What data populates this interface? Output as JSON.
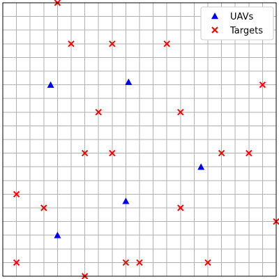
{
  "chart_data": {
    "type": "scatter",
    "title": "",
    "xlabel": "",
    "ylabel": "",
    "xlim": [
      0,
      20
    ],
    "ylim": [
      0,
      20
    ],
    "grid": true,
    "grid_step": 1,
    "ticks_visible": false,
    "legend_position": "top-right",
    "series": [
      {
        "name": "UAVs",
        "marker": "triangle",
        "color": "#0000ff",
        "points": [
          [
            3.5,
            14
          ],
          [
            9.2,
            14.2
          ],
          [
            14.5,
            8
          ],
          [
            9,
            5.5
          ],
          [
            4,
            3
          ]
        ]
      },
      {
        "name": "Targets",
        "marker": "x",
        "color": "#ff0000",
        "points": [
          [
            4,
            20
          ],
          [
            5,
            17
          ],
          [
            8,
            17
          ],
          [
            12,
            17
          ],
          [
            19,
            14
          ],
          [
            7,
            12
          ],
          [
            13,
            12
          ],
          [
            6,
            9
          ],
          [
            8,
            9
          ],
          [
            16,
            9
          ],
          [
            18,
            9
          ],
          [
            1,
            6
          ],
          [
            3,
            5
          ],
          [
            13,
            5
          ],
          [
            20,
            4
          ],
          [
            1,
            1
          ],
          [
            9,
            1
          ],
          [
            10,
            1
          ],
          [
            15,
            1
          ],
          [
            6,
            0
          ]
        ]
      }
    ]
  }
}
